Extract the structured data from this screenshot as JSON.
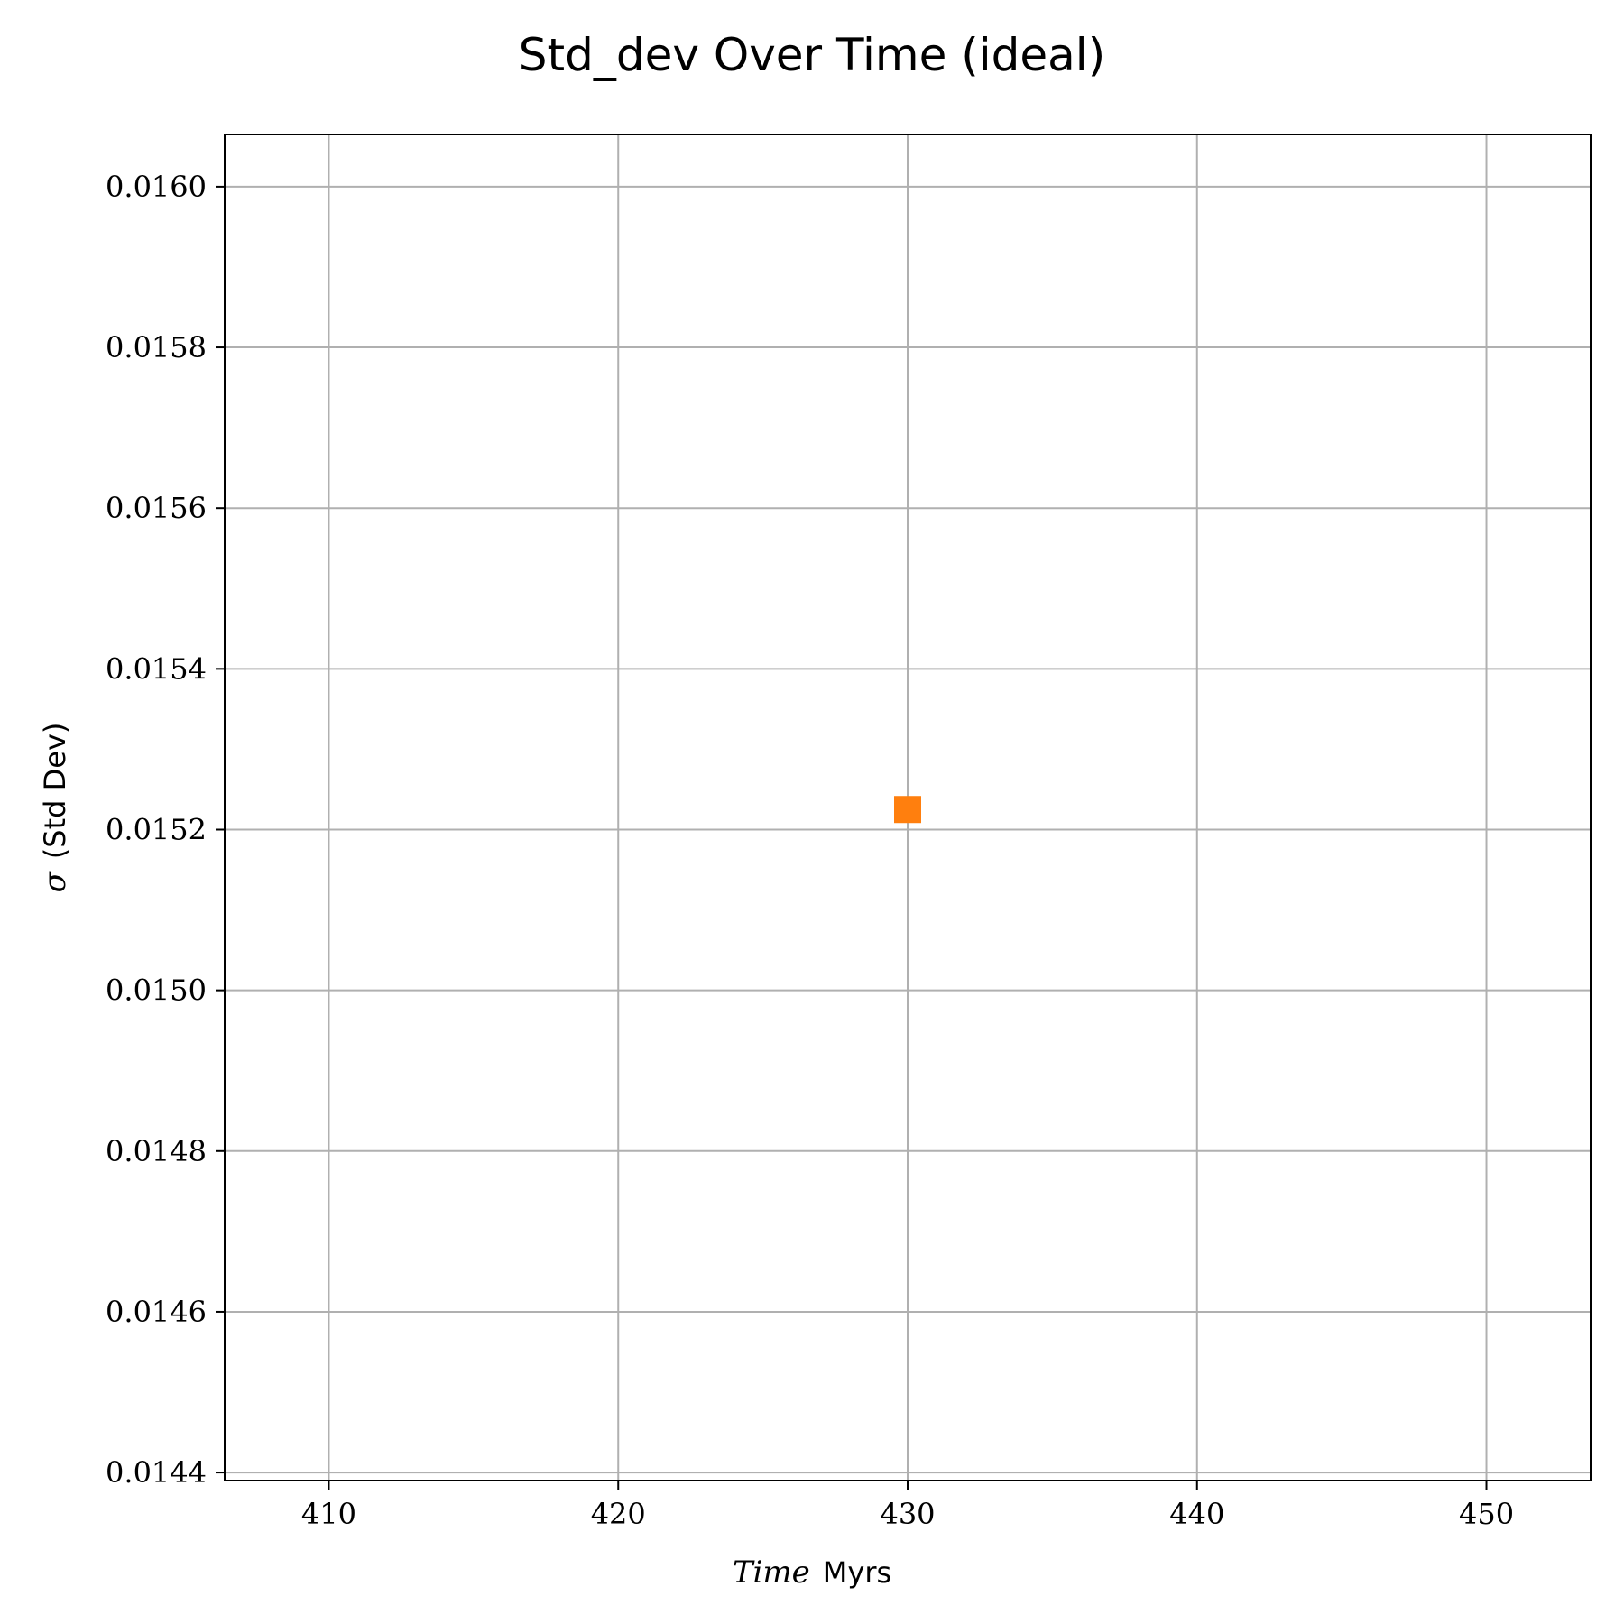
{
  "chart_data": {
    "type": "scatter",
    "title": "Std_dev Over Time (ideal)",
    "xlabel": {
      "italic_part": "Time",
      "plain_part": "Myrs"
    },
    "ylabel": {
      "symbol": "σ",
      "plain_part": "(Std Dev)"
    },
    "xlim": [
      406.4,
      453.6
    ],
    "ylim": [
      0.01439,
      0.016065
    ],
    "x_ticks": [
      410,
      420,
      430,
      440,
      450
    ],
    "x_tick_labels": [
      "410",
      "420",
      "430",
      "440",
      "450"
    ],
    "y_ticks": [
      0.0144,
      0.0146,
      0.0148,
      0.015,
      0.0152,
      0.0154,
      0.0156,
      0.0158,
      0.016
    ],
    "y_tick_labels": [
      "0.0144",
      "0.0146",
      "0.0148",
      "0.0150",
      "0.0152",
      "0.0154",
      "0.0156",
      "0.0158",
      "0.0160"
    ],
    "grid": true,
    "series": [
      {
        "marker": "square",
        "color": "#ff7f0e",
        "points": [
          {
            "x": 430,
            "y": 0.015225
          }
        ]
      }
    ]
  }
}
